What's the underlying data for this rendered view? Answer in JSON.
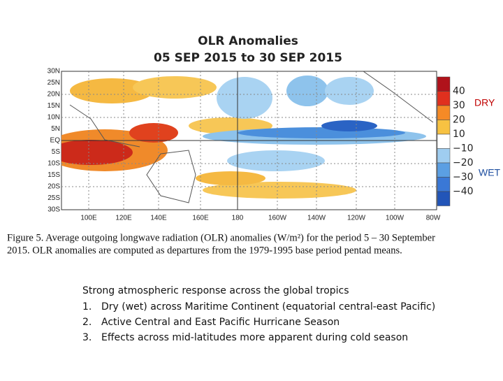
{
  "map": {
    "title": [
      "OLR Anomalies",
      "05 SEP 2015 to 30 SEP 2015"
    ],
    "lat_labels": [
      "30N",
      "25N",
      "20N",
      "15N",
      "10N",
      "5N",
      "EQ",
      "5S",
      "10S",
      "15S",
      "20S",
      "25S",
      "30S"
    ],
    "lon_labels": [
      "100E",
      "120E",
      "140E",
      "160E",
      "180",
      "160W",
      "140W",
      "120W",
      "100W",
      "80W"
    ],
    "colorbar_labels": [
      "40",
      "30",
      "20",
      "10",
      "−10",
      "−20",
      "−30",
      "−40"
    ]
  },
  "annotations": {
    "dry": "DRY",
    "wet": "WET"
  },
  "caption": [
    "Figure 5. Average outgoing longwave radiation (OLR) anomalies (W/m²) for the period 5 – 30 September",
    "2015. OLR anomalies are computed as departures from the 1979-1995 base period pentad means."
  ],
  "bullets": {
    "intro": "Strong atmospheric response across the global tropics",
    "items": [
      {
        "number": "1.",
        "text": "Dry (wet) across Maritime Continent (equatorial central-east Pacific)"
      },
      {
        "number": "2.",
        "text": "Active Central and East Pacific Hurricane Season"
      },
      {
        "number": "3.",
        "text": "Effects across mid-latitudes more apparent during cold season"
      }
    ]
  }
}
